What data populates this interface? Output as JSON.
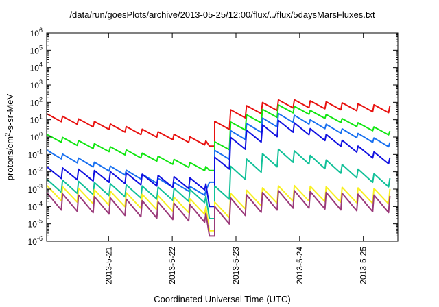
{
  "chart_data": {
    "type": "line",
    "title": "/data/run/goesPlots/archive/2013-05-25/12:00/flux/../flux/5daysMarsFluxes.txt",
    "xlabel": "Coordinated Universal Time (UTC)",
    "ylabel": {
      "prefix": "protons/cm",
      "sup": "2",
      "suffix": "-s-sr-MeV"
    },
    "y_scale": "log",
    "ylim": [
      1e-06,
      1000000.0
    ],
    "y_ticks": [
      {
        "value": 1e-06,
        "mantissa": "10",
        "exp": "-6"
      },
      {
        "value": 1e-05,
        "mantissa": "10",
        "exp": "-5"
      },
      {
        "value": 0.0001,
        "mantissa": "10",
        "exp": "-4"
      },
      {
        "value": 0.001,
        "mantissa": "10",
        "exp": "-3"
      },
      {
        "value": 0.01,
        "mantissa": "10",
        "exp": "-2"
      },
      {
        "value": 0.1,
        "mantissa": "10",
        "exp": "-1"
      },
      {
        "value": 1,
        "mantissa": "10",
        "exp": "0"
      },
      {
        "value": 10.0,
        "mantissa": "10",
        "exp": "1"
      },
      {
        "value": 100.0,
        "mantissa": "10",
        "exp": "2"
      },
      {
        "value": 1000.0,
        "mantissa": "10",
        "exp": "3"
      },
      {
        "value": 10000.0,
        "mantissa": "10",
        "exp": "4"
      },
      {
        "value": 100000.0,
        "mantissa": "10",
        "exp": "5"
      },
      {
        "value": 1000000.0,
        "mantissa": "10",
        "exp": "6"
      }
    ],
    "x_ticks": [
      "2013-5-21",
      "2013-5-22",
      "2013-5-23",
      "2013-5-24",
      "2013-5-25"
    ],
    "xlim": [
      "2013-05-20T00:40",
      "2013-05-25T13:00"
    ],
    "event_time": "2013-05-22T16:00",
    "sawtooth_period_hours": 6,
    "grid": false,
    "legend": "none",
    "series": [
      {
        "color": "#e8110f",
        "pre": [
          13,
          0.6
        ],
        "min": 0.3,
        "peak": 90,
        "end": 35,
        "amp": 1.7
      },
      {
        "color": "#10e610",
        "pre": [
          0.85,
          0.02
        ],
        "min": 0.012,
        "peak": 50,
        "end": 1.0,
        "amp": 1.7
      },
      {
        "color": "#1870f0",
        "pre": [
          0.1,
          0.0008
        ],
        "min": 0.0025,
        "peak": 15,
        "end": 0.2,
        "amp": 1.8
      },
      {
        "color": "#1010e0",
        "pre": [
          0.009,
          0.002
        ],
        "min": 0.0001,
        "peak": 5,
        "end": 0.02,
        "amp": 2.2
      },
      {
        "color": "#10c098",
        "pre": [
          0.0016,
          0.0004
        ],
        "min": 2e-05,
        "peak": 0.1,
        "end": 0.0013,
        "amp": 2.4
      },
      {
        "color": "#f8f020",
        "pre": [
          0.0006,
          0.0001
        ],
        "min": 4e-06,
        "peak": 0.0006,
        "end": 0.00035,
        "amp": 2.8
      },
      {
        "color": "#9a3a7a",
        "pre": [
          0.0002,
          4e-05
        ],
        "min": 2e-06,
        "peak": 0.00028,
        "end": 0.00012,
        "amp": 3.2
      }
    ]
  }
}
